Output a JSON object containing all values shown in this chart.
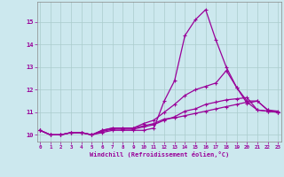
{
  "xlabel": "Windchill (Refroidissement éolien,°C)",
  "bg_color": "#cce8ee",
  "line_color": "#990099",
  "grid_color": "#aacccc",
  "x": [
    0,
    1,
    2,
    3,
    4,
    5,
    6,
    7,
    8,
    9,
    10,
    11,
    12,
    13,
    14,
    15,
    16,
    17,
    18,
    19,
    20,
    21,
    22,
    23
  ],
  "line1": [
    10.2,
    10.0,
    10.0,
    10.1,
    10.1,
    10.0,
    10.1,
    10.2,
    10.2,
    10.2,
    10.2,
    10.3,
    11.5,
    12.4,
    14.4,
    15.1,
    15.55,
    14.2,
    13.0,
    12.1,
    11.4,
    11.5,
    11.1,
    11.0
  ],
  "line2": [
    10.2,
    10.0,
    10.0,
    10.1,
    10.1,
    10.0,
    10.2,
    10.3,
    10.3,
    10.3,
    10.5,
    10.65,
    11.0,
    11.35,
    11.75,
    12.0,
    12.15,
    12.3,
    12.85,
    12.1,
    11.5,
    11.5,
    11.1,
    11.05
  ],
  "line3": [
    10.2,
    10.0,
    10.0,
    10.1,
    10.1,
    10.0,
    10.2,
    10.3,
    10.3,
    10.3,
    10.4,
    10.5,
    10.7,
    10.75,
    10.85,
    10.95,
    11.05,
    11.15,
    11.25,
    11.35,
    11.45,
    11.1,
    11.05,
    11.0
  ],
  "line4": [
    10.2,
    10.0,
    10.0,
    10.1,
    10.1,
    10.0,
    10.15,
    10.25,
    10.25,
    10.25,
    10.35,
    10.45,
    10.65,
    10.8,
    11.05,
    11.15,
    11.35,
    11.45,
    11.55,
    11.6,
    11.65,
    11.1,
    11.05,
    11.0
  ],
  "yticks": [
    10,
    11,
    12,
    13,
    14,
    15
  ],
  "xticks": [
    0,
    1,
    2,
    3,
    4,
    5,
    6,
    7,
    8,
    9,
    10,
    11,
    12,
    13,
    14,
    15,
    16,
    17,
    18,
    19,
    20,
    21,
    22,
    23
  ],
  "ylim": [
    9.7,
    15.9
  ],
  "xlim": [
    -0.3,
    23.3
  ]
}
